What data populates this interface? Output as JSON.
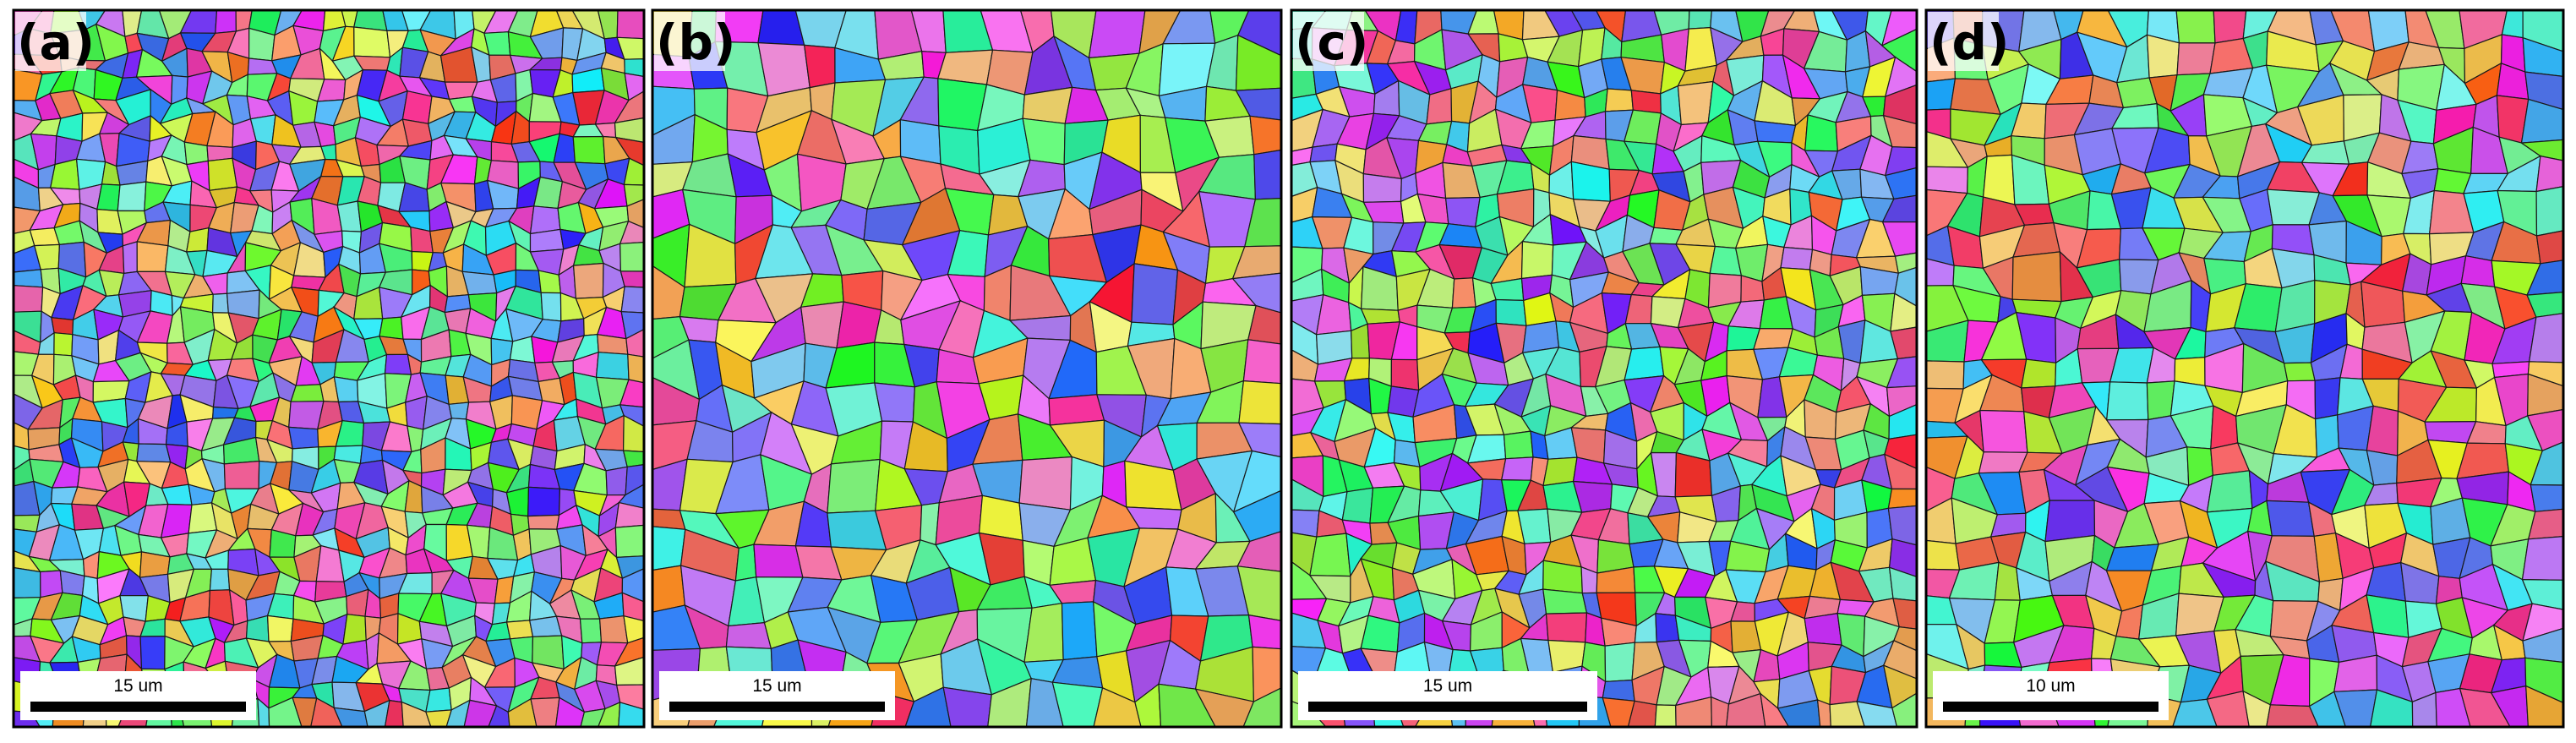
{
  "panels": [
    {
      "label": "(a)",
      "scale_bar": "15 um"
    },
    {
      "label": "(b)",
      "scale_bar": "15 um"
    },
    {
      "label": "(c)",
      "scale_bar": "15 um"
    },
    {
      "label": "(d)",
      "scale_bar": "10 um"
    }
  ]
}
